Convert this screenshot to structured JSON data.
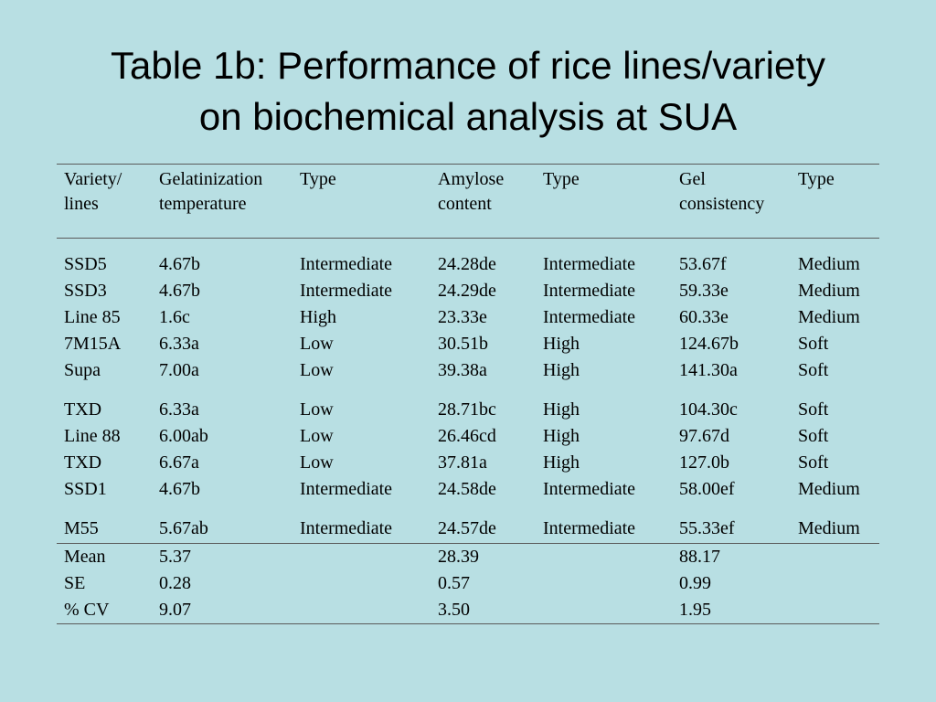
{
  "slide": {
    "title_line1": "Table 1b: Performance of rice lines/variety",
    "title_line2": "on biochemical analysis at SUA"
  },
  "table": {
    "headers": [
      "Variety/ lines",
      "Gelatinization temperature",
      "Type",
      "Amylose content",
      "Type",
      "Gel consistency",
      "Type"
    ],
    "rows": [
      [
        "SSD5",
        "4.67b",
        "Intermediate",
        "24.28de",
        "Intermediate",
        "53.67f",
        "Medium"
      ],
      [
        "SSD3",
        "4.67b",
        "Intermediate",
        "24.29de",
        "Intermediate",
        "59.33e",
        "Medium"
      ],
      [
        "Line 85",
        "1.6c",
        "High",
        "23.33e",
        "Intermediate",
        "60.33e",
        "Medium"
      ],
      [
        "7M15A",
        "6.33a",
        "Low",
        "30.51b",
        "High",
        "124.67b",
        "Soft"
      ],
      [
        "Supa",
        "7.00a",
        "Low",
        "39.38a",
        "High",
        "141.30a",
        "Soft"
      ],
      [
        "TXD",
        "6.33a",
        "Low",
        "28.71bc",
        "High",
        "104.30c",
        "Soft"
      ],
      [
        "Line 88",
        "6.00ab",
        "Low",
        "26.46cd",
        "High",
        "97.67d",
        "Soft"
      ],
      [
        "TXD",
        "6.67a",
        "Low",
        "37.81a",
        "High",
        "127.0b",
        "Soft"
      ],
      [
        "SSD1",
        "4.67b",
        "Intermediate",
        "24.58de",
        "Intermediate",
        "58.00ef",
        "Medium"
      ],
      [
        "M55",
        "5.67ab",
        "Intermediate",
        "24.57de",
        "Intermediate",
        "55.33ef",
        "Medium"
      ]
    ],
    "stats": [
      [
        "Mean",
        "5.37",
        "",
        "28.39",
        "",
        "88.17",
        ""
      ],
      [
        "SE",
        "0.28",
        "",
        "0.57",
        "",
        "0.99",
        ""
      ],
      [
        "% CV",
        "9.07",
        "",
        "3.50",
        "",
        "1.95",
        ""
      ]
    ]
  }
}
